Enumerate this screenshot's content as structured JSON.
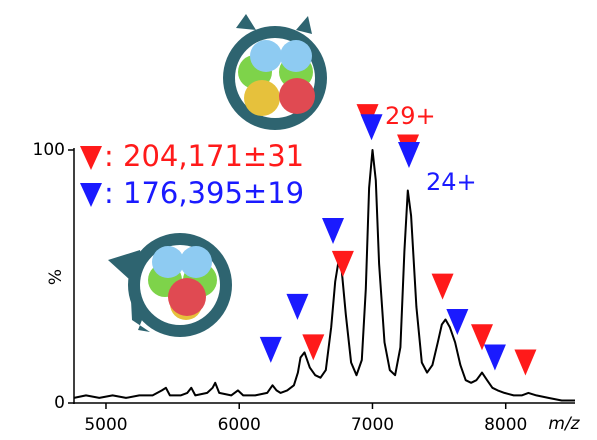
{
  "chart_data": {
    "type": "line",
    "xlabel": "m/z",
    "ylabel": "%",
    "xlim": [
      4760,
      8520
    ],
    "ylim": [
      0,
      100
    ],
    "xticks": [
      5000,
      6000,
      7000,
      8000
    ],
    "yticks": [
      0,
      100
    ],
    "spectrum": {
      "color": "#000000",
      "x": [
        4760,
        4850,
        4950,
        5050,
        5150,
        5250,
        5350,
        5420,
        5450,
        5480,
        5560,
        5610,
        5640,
        5670,
        5760,
        5800,
        5820,
        5850,
        5940,
        5990,
        6030,
        6120,
        6210,
        6250,
        6280,
        6310,
        6360,
        6410,
        6440,
        6460,
        6490,
        6530,
        6570,
        6610,
        6650,
        6690,
        6720,
        6745,
        6770,
        6800,
        6840,
        6880,
        6920,
        6950,
        6975,
        7000,
        7025,
        7050,
        7090,
        7130,
        7170,
        7210,
        7240,
        7265,
        7290,
        7330,
        7370,
        7410,
        7450,
        7490,
        7520,
        7548,
        7580,
        7620,
        7660,
        7700,
        7740,
        7780,
        7822,
        7860,
        7900,
        7940,
        7990,
        8060,
        8120,
        8170,
        8230,
        8320,
        8420,
        8520
      ],
      "values": [
        2,
        3,
        2,
        3,
        2,
        3,
        3,
        5,
        6,
        3,
        3,
        4,
        6,
        3,
        4,
        6,
        8,
        4,
        3,
        5,
        3,
        3,
        4,
        7,
        5,
        4,
        5,
        7,
        12,
        18,
        20,
        14,
        11,
        10,
        13,
        30,
        48,
        56,
        52,
        35,
        16,
        11,
        17,
        45,
        85,
        100,
        88,
        55,
        24,
        13,
        11,
        22,
        60,
        84,
        74,
        38,
        16,
        12,
        15,
        24,
        31,
        33,
        30,
        24,
        15,
        9,
        8,
        9,
        12,
        9,
        6,
        5,
        4,
        3,
        3,
        4,
        3,
        2,
        1,
        1
      ]
    },
    "markers": [
      {
        "name": ": 204,171±31",
        "color": "#ff1a1a",
        "x": [
          6556,
          6778,
          6963,
          7267,
          7526,
          7822,
          8148
        ],
        "values": [
          22,
          55,
          113,
          101,
          46,
          26,
          16
        ]
      },
      {
        "name": ": 176,395±19",
        "color": "#1a1aff",
        "x": [
          6237,
          6437,
          6704,
          6993,
          7274,
          7637,
          7919
        ],
        "values": [
          21,
          38,
          68,
          109,
          98,
          32,
          18
        ]
      }
    ],
    "annotations": [
      {
        "text": "29+",
        "color": "#ff1a1a"
      },
      {
        "text": "24+",
        "color": "#1a1aff"
      }
    ]
  }
}
